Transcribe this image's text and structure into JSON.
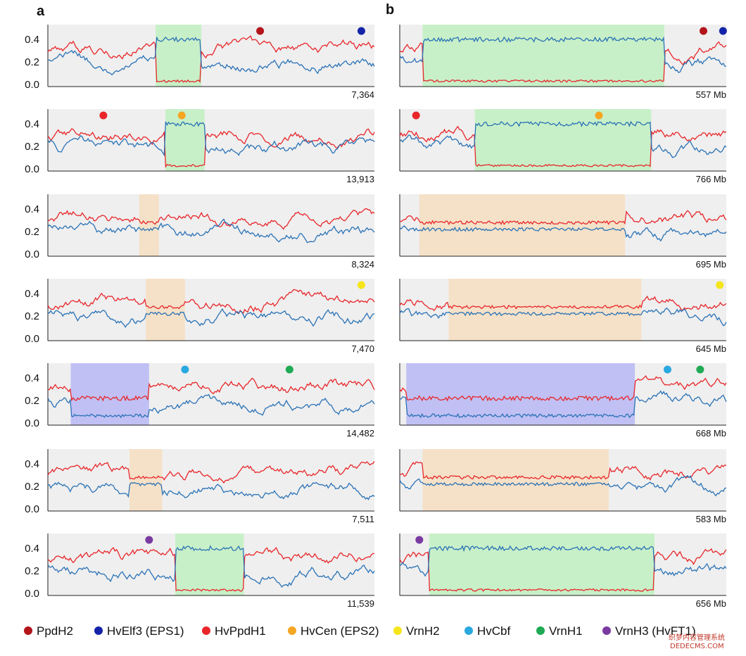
{
  "figure": {
    "panel_labels": [
      "a",
      "b"
    ],
    "watermark": {
      "line1": "织梦内容管理系统",
      "line2": "DEDECMS.COM"
    }
  },
  "colors": {
    "red_series": "#e8262a",
    "blue_series": "#2a72b6",
    "background_band": "#efefef",
    "highlight_green": "#c8f0c8",
    "highlight_orange": "#f5e1c8",
    "highlight_purple": "#c0c0f4",
    "teal_in_green": "#1f8a9a",
    "brown_in_green": "#b5420f"
  },
  "legend": [
    {
      "label": "PpdH2",
      "color": "#b3151b"
    },
    {
      "label": "HvElf3 (EPS1)",
      "color": "#1424a8"
    },
    {
      "label": "HvPpdH1",
      "color": "#e8262a"
    },
    {
      "label": "HvCen (EPS2)",
      "color": "#f5a623"
    },
    {
      "label": "VrnH2",
      "color": "#f5e51b"
    },
    {
      "label": "HvCbf",
      "color": "#2aa8e0"
    },
    {
      "label": "VrnH1",
      "color": "#1faa55"
    },
    {
      "label": "VrnH3 (HvFT1)",
      "color": "#7a3aa0"
    }
  ],
  "chart_data": {
    "type": "line",
    "panel_a_right_labels": [
      "7,364",
      "13,913",
      "8,324",
      "7,470",
      "14,482",
      "7,511",
      "11,539"
    ],
    "panel_b_right_labels": [
      "557 Mb",
      "766 Mb",
      "695 Mb",
      "645 Mb",
      "668 Mb",
      "583 Mb",
      "656 Mb"
    ],
    "y_ticks": [
      "0.4",
      "0.2",
      "0.0"
    ],
    "ylim": [
      0,
      0.5
    ],
    "series_names": [
      "red",
      "blue"
    ],
    "rows": [
      {
        "a": {
          "highlight": {
            "color": "green",
            "x": [
              0.33,
              0.47
            ]
          },
          "markers": [
            {
              "name": "PpdH2",
              "x": 0.65
            },
            {
              "name": "HvElf3 (EPS1)",
              "x": 0.96
            }
          ]
        },
        "b": {
          "highlight": {
            "color": "green",
            "x": [
              0.07,
              0.81
            ]
          },
          "markers": [
            {
              "name": "PpdH2",
              "x": 0.93
            },
            {
              "name": "HvElf3 (EPS1)",
              "x": 0.99
            }
          ]
        }
      },
      {
        "a": {
          "highlight": {
            "color": "green",
            "x": [
              0.36,
              0.48
            ]
          },
          "markers": [
            {
              "name": "HvPpdH1",
              "x": 0.17
            },
            {
              "name": "HvCen (EPS2)",
              "x": 0.41
            }
          ]
        },
        "b": {
          "highlight": {
            "color": "green",
            "x": [
              0.23,
              0.77
            ]
          },
          "markers": [
            {
              "name": "HvPpdH1",
              "x": 0.05
            },
            {
              "name": "HvCen (EPS2)",
              "x": 0.61
            }
          ]
        }
      },
      {
        "a": {
          "highlight": {
            "color": "orange",
            "x": [
              0.28,
              0.34
            ]
          },
          "markers": []
        },
        "b": {
          "highlight": {
            "color": "orange",
            "x": [
              0.06,
              0.69
            ]
          },
          "markers": []
        }
      },
      {
        "a": {
          "highlight": {
            "color": "orange",
            "x": [
              0.3,
              0.42
            ]
          },
          "markers": [
            {
              "name": "VrnH2",
              "x": 0.96
            }
          ]
        },
        "b": {
          "highlight": {
            "color": "orange",
            "x": [
              0.15,
              0.74
            ]
          },
          "markers": [
            {
              "name": "VrnH2",
              "x": 0.98
            }
          ]
        }
      },
      {
        "a": {
          "highlight": {
            "color": "purple",
            "x": [
              0.07,
              0.31
            ]
          },
          "markers": [
            {
              "name": "HvCbf",
              "x": 0.42
            },
            {
              "name": "VrnH1",
              "x": 0.74
            }
          ]
        },
        "b": {
          "highlight": {
            "color": "purple",
            "x": [
              0.02,
              0.72
            ]
          },
          "markers": [
            {
              "name": "HvCbf",
              "x": 0.82
            },
            {
              "name": "VrnH1",
              "x": 0.92
            }
          ]
        }
      },
      {
        "a": {
          "highlight": {
            "color": "orange",
            "x": [
              0.25,
              0.35
            ]
          },
          "markers": []
        },
        "b": {
          "highlight": {
            "color": "orange",
            "x": [
              0.07,
              0.64
            ]
          },
          "markers": []
        }
      },
      {
        "a": {
          "highlight": {
            "color": "green",
            "x": [
              0.39,
              0.6
            ]
          },
          "markers": [
            {
              "name": "VrnH3 (HvFT1)",
              "x": 0.31
            }
          ]
        },
        "b": {
          "highlight": {
            "color": "green",
            "x": [
              0.09,
              0.78
            ]
          },
          "markers": [
            {
              "name": "VrnH3 (HvFT1)",
              "x": 0.06
            }
          ]
        }
      }
    ]
  }
}
